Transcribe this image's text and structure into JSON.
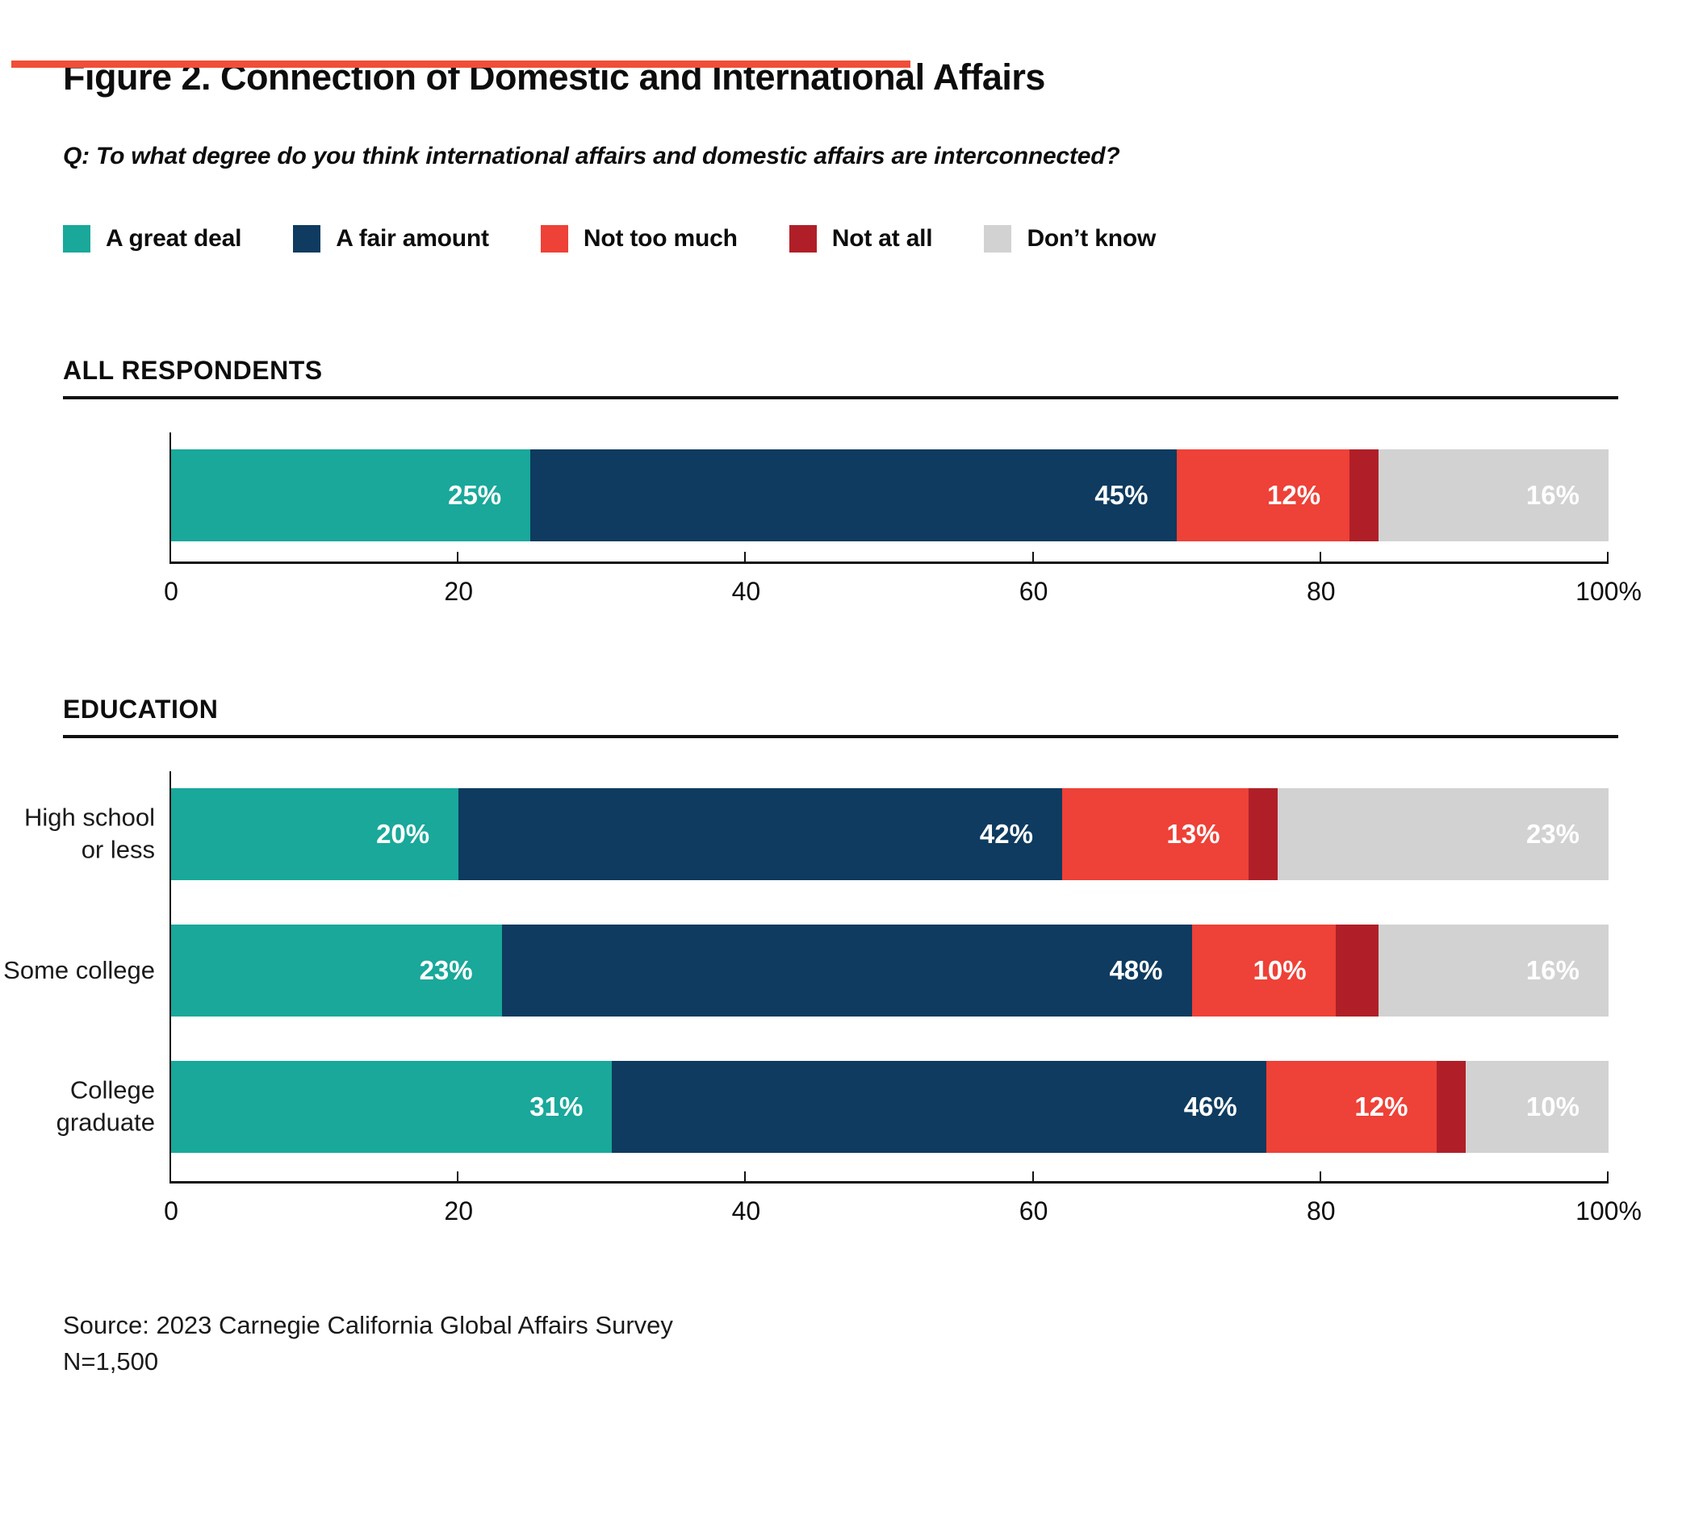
{
  "page": {
    "title": "Figure 2. Connection of Domestic and International Affairs",
    "question": "Q: To what degree do you think international affairs and domestic affairs are interconnected?",
    "source_line1": "Source: 2023 Carnegie California Global Affairs Survey",
    "source_line2": "N=1,500",
    "accent_color": "#F04E38"
  },
  "legend": [
    {
      "label": "A great deal",
      "color": "#19A89A"
    },
    {
      "label": "A fair amount",
      "color": "#0E3B5F"
    },
    {
      "label": "Not too much",
      "color": "#EE4137"
    },
    {
      "label": "Not at all",
      "color": "#B01F28"
    },
    {
      "label": "Don’t know",
      "color": "#D2D2D2"
    }
  ],
  "chart_data": {
    "type": "bar",
    "stacked": true,
    "orientation": "horizontal",
    "unit": "%",
    "xlim": [
      0,
      100
    ],
    "series_names": [
      "A great deal",
      "A fair amount",
      "Not too much",
      "Not at all",
      "Don’t know"
    ],
    "x_ticks": [
      {
        "label": "0",
        "value": 0
      },
      {
        "label": "20",
        "value": 20
      },
      {
        "label": "40",
        "value": 40
      },
      {
        "label": "60",
        "value": 60
      },
      {
        "label": "80",
        "value": 80
      },
      {
        "label": "100%",
        "value": 100
      }
    ],
    "sections": [
      {
        "heading": "ALL RESPONDENTS",
        "rows": [
          {
            "category_lines": [],
            "values": [
              25,
              45,
              12,
              2,
              16
            ],
            "labels": [
              "25%",
              "45%",
              "12%",
              "",
              "16%"
            ]
          }
        ]
      },
      {
        "heading": "EDUCATION",
        "rows": [
          {
            "category_lines": [
              "High school",
              "or less"
            ],
            "values": [
              20,
              42,
              13,
              2,
              23
            ],
            "labels": [
              "20%",
              "42%",
              "13%",
              "",
              "23%"
            ]
          },
          {
            "category_lines": [
              "Some college"
            ],
            "values": [
              23,
              48,
              10,
              3,
              16
            ],
            "labels": [
              "23%",
              "48%",
              "10%",
              "",
              "16%"
            ]
          },
          {
            "category_lines": [
              "College",
              "graduate"
            ],
            "values": [
              31,
              46,
              12,
              1,
              10
            ],
            "labels": [
              "31%",
              "46%",
              "12%",
              "",
              "10%"
            ]
          }
        ]
      }
    ]
  }
}
